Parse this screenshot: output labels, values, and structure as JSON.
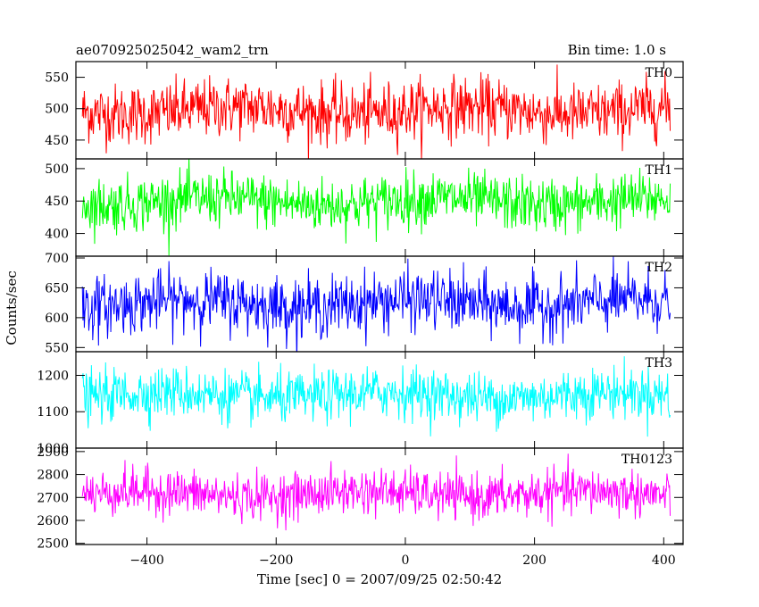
{
  "header": {
    "title": "ae070925025042_wam2_trn",
    "bin_time": "Bin time: 1.0 s"
  },
  "chart_data": {
    "type": "line",
    "xlabel": "Time [sec] 0 = 2007/09/25 02:50:42",
    "ylabel": "Counts/sec",
    "xlim": [
      -510,
      430
    ],
    "xticks": [
      -400,
      -200,
      0,
      200,
      400
    ],
    "xtick_labels": [
      "−400",
      "−200",
      "0",
      "200",
      "400"
    ],
    "data_x_range": [
      -500,
      410
    ],
    "bin_time_s": 1.0,
    "panels": [
      {
        "name": "TH0",
        "color": "#ff0000",
        "ylim": [
          420,
          575
        ],
        "yticks": [
          450,
          500,
          550
        ],
        "mean": 497,
        "noise_sd": 24
      },
      {
        "name": "TH1",
        "color": "#00ff00",
        "ylim": [
          365,
          515
        ],
        "yticks": [
          400,
          450,
          500
        ],
        "mean": 449,
        "noise_sd": 21
      },
      {
        "name": "TH2",
        "color": "#0000ff",
        "ylim": [
          543,
          703
        ],
        "yticks": [
          550,
          600,
          650,
          700
        ],
        "mean": 624,
        "noise_sd": 25
      },
      {
        "name": "TH3",
        "color": "#00ffff",
        "ylim": [
          1000,
          1265
        ],
        "yticks": [
          1000,
          1100,
          1200
        ],
        "mean": 1145,
        "noise_sd": 35
      },
      {
        "name": "TH0123",
        "color": "#ff00ff",
        "ylim": [
          2495,
          2915
        ],
        "yticks": [
          2500,
          2600,
          2700,
          2800,
          2900
        ],
        "mean": 2715,
        "noise_sd": 50
      }
    ]
  }
}
